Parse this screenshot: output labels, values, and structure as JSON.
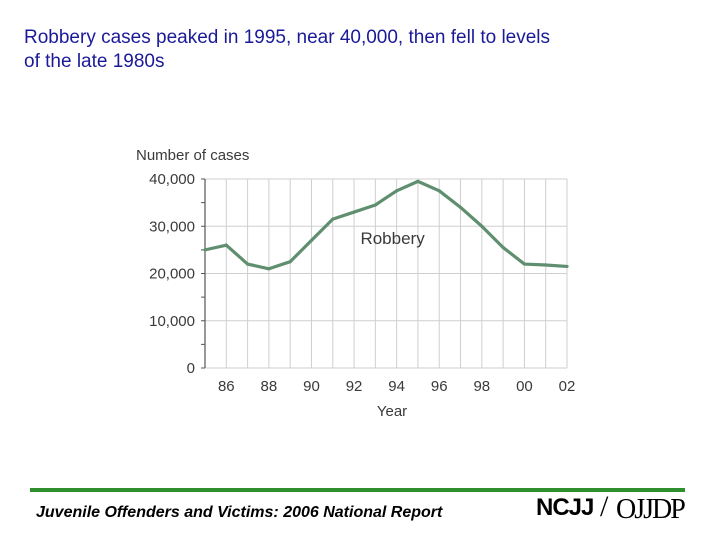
{
  "slide": {
    "title": "Robbery cases peaked in 1995, near 40,000, then fell to levels\nof the late 1980s"
  },
  "footer": {
    "text": "Juvenile Offenders and Victims: 2006 National Report",
    "logo_left": "NCJJ",
    "logo_slash": "/",
    "logo_right": "OJJDP"
  },
  "colors": {
    "title": "#1a1a99",
    "line": "#5f8f6e",
    "grid": "#cfcfcf",
    "footer_bar": "#2f8f2f"
  },
  "chart_data": {
    "type": "line",
    "ylabel": "Number of cases",
    "xlabel": "Year",
    "ylim": [
      0,
      40000
    ],
    "xlim": [
      1985,
      2002
    ],
    "grid": true,
    "yticks": [
      0,
      10000,
      20000,
      30000,
      40000
    ],
    "ytick_labels": [
      "0",
      "10,000",
      "20,000",
      "30,000",
      "40,000"
    ],
    "xticks": [
      1986,
      1988,
      1990,
      1992,
      1994,
      1996,
      1998,
      2000,
      2002
    ],
    "xtick_labels": [
      "86",
      "88",
      "90",
      "92",
      "94",
      "96",
      "98",
      "00",
      "02"
    ],
    "series": [
      {
        "name": "Robbery",
        "x": [
          1985,
          1986,
          1987,
          1988,
          1989,
          1990,
          1991,
          1992,
          1993,
          1994,
          1995,
          1996,
          1997,
          1998,
          1999,
          2000,
          2001,
          2002
        ],
        "y": [
          25000,
          26000,
          22000,
          21000,
          22500,
          27000,
          31500,
          33000,
          34500,
          37500,
          39500,
          37500,
          34000,
          30000,
          25500,
          22000,
          21800,
          21500
        ]
      }
    ]
  }
}
